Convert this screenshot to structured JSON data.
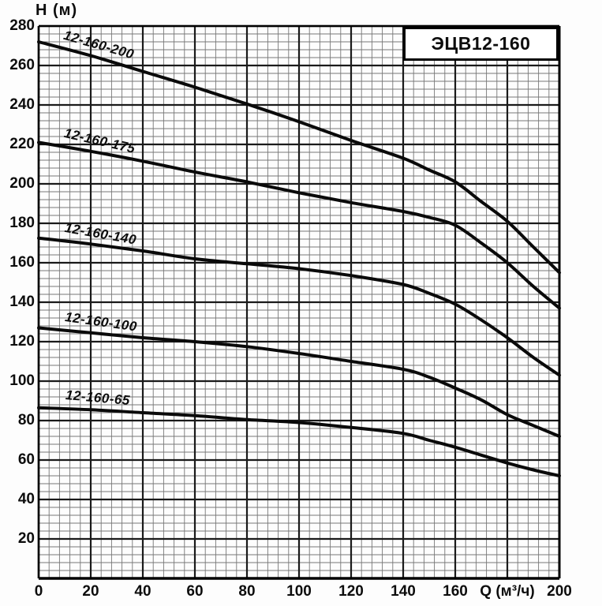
{
  "chart_data": {
    "type": "line",
    "title": "ЭЦВ12-160",
    "xlabel": "Q (м³/ч)",
    "ylabel": "Н (м)",
    "xlim": [
      0,
      200
    ],
    "ylim": [
      0,
      280
    ],
    "x_major_step": 20,
    "y_major_step": 20,
    "x_minor_step": 4,
    "y_minor_step": 4,
    "grid": "major+minor",
    "legend_position": "labels-on-curves",
    "x_tick_labels": [
      0,
      20,
      40,
      60,
      80,
      100,
      120,
      140,
      160,
      200
    ],
    "xlabel_at_x": 180,
    "y_tick_labels": [
      20,
      40,
      60,
      80,
      100,
      120,
      140,
      160,
      180,
      200,
      220,
      240,
      260,
      280
    ],
    "series": [
      {
        "name": "12-160-200",
        "label_angle": 16,
        "points": [
          [
            0,
            272
          ],
          [
            20,
            265
          ],
          [
            40,
            257
          ],
          [
            60,
            249
          ],
          [
            80,
            240.5
          ],
          [
            100,
            231.5
          ],
          [
            120,
            222
          ],
          [
            140,
            213
          ],
          [
            150,
            207
          ],
          [
            160,
            201
          ],
          [
            170,
            191
          ],
          [
            180,
            181
          ],
          [
            190,
            168
          ],
          [
            200,
            155
          ]
        ]
      },
      {
        "name": "12-160-175",
        "label_angle": 13,
        "points": [
          [
            0,
            221
          ],
          [
            20,
            216.5
          ],
          [
            40,
            211.5
          ],
          [
            60,
            206
          ],
          [
            80,
            201
          ],
          [
            100,
            195.5
          ],
          [
            120,
            190.5
          ],
          [
            140,
            186
          ],
          [
            150,
            183
          ],
          [
            160,
            179
          ],
          [
            170,
            170
          ],
          [
            180,
            160
          ],
          [
            190,
            148
          ],
          [
            200,
            137
          ]
        ]
      },
      {
        "name": "12-160-140",
        "label_angle": 10,
        "points": [
          [
            0,
            172.5
          ],
          [
            20,
            169.5
          ],
          [
            40,
            166
          ],
          [
            60,
            162
          ],
          [
            80,
            159.5
          ],
          [
            100,
            157
          ],
          [
            120,
            153.5
          ],
          [
            140,
            149
          ],
          [
            150,
            144.5
          ],
          [
            160,
            139
          ],
          [
            170,
            131
          ],
          [
            180,
            122
          ],
          [
            190,
            112
          ],
          [
            200,
            103
          ]
        ]
      },
      {
        "name": "12-160-100",
        "label_angle": 8,
        "points": [
          [
            0,
            127
          ],
          [
            20,
            124.5
          ],
          [
            40,
            122
          ],
          [
            60,
            120
          ],
          [
            80,
            117.5
          ],
          [
            100,
            114
          ],
          [
            120,
            110
          ],
          [
            140,
            106
          ],
          [
            150,
            102
          ],
          [
            160,
            96.5
          ],
          [
            170,
            90.5
          ],
          [
            180,
            83
          ],
          [
            190,
            77.5
          ],
          [
            200,
            72
          ]
        ]
      },
      {
        "name": "12-160-65",
        "label_angle": 5,
        "points": [
          [
            0,
            86.5
          ],
          [
            20,
            85.5
          ],
          [
            40,
            84
          ],
          [
            60,
            82.5
          ],
          [
            80,
            80.5
          ],
          [
            100,
            79
          ],
          [
            120,
            76.5
          ],
          [
            140,
            73.5
          ],
          [
            150,
            70
          ],
          [
            160,
            66.5
          ],
          [
            170,
            62.5
          ],
          [
            180,
            58.5
          ],
          [
            190,
            55
          ],
          [
            200,
            52
          ]
        ]
      }
    ]
  },
  "colors": {
    "ink": "#0d0d0d",
    "curve": "#0a0a0a",
    "grid_major": "#1a1a1a",
    "grid_minor": "#777777",
    "border": "#000000",
    "box_background": "#ffffff"
  }
}
